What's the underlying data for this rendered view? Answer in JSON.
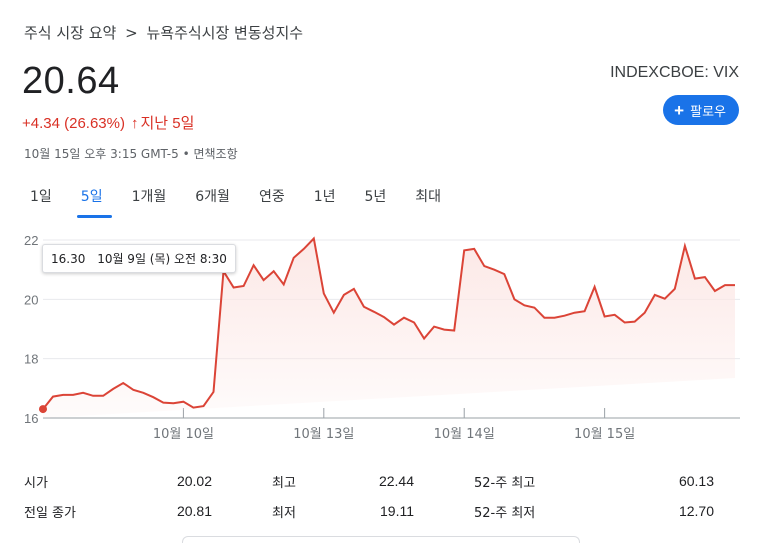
{
  "breadcrumb": {
    "parent": "주식 시장 요약",
    "separator": ">",
    "current": "뉴욕주식시장 변동성지수"
  },
  "price": "20.64",
  "ticker": "INDEXCBOE: VIX",
  "follow_label": "팔로우",
  "change": {
    "text": "+4.34 (26.63%)",
    "arrow": "↑",
    "period": "지난 5일"
  },
  "timestamp": "10월 15일 오후 3:15 GMT-5 • 면책조항",
  "tabs": [
    "1일",
    "5일",
    "1개월",
    "6개월",
    "연중",
    "1년",
    "5년",
    "최대"
  ],
  "active_tab": "5일",
  "tooltip": {
    "value": "16.30",
    "datetime": "10월 9일 (목) 오전 8:30"
  },
  "colors": {
    "line": "#db4437",
    "accent": "#1a73e8",
    "negative": "#d93025"
  },
  "stats": [
    {
      "label1": "시가",
      "value1": "20.02",
      "label2": "최고",
      "value2": "22.44",
      "label3": "52-주 최고",
      "value3": "60.13"
    },
    {
      "label1": "전일 종가",
      "value1": "20.81",
      "label2": "최저",
      "value2": "19.11",
      "label3": "52-주 최저",
      "value3": "12.70"
    }
  ],
  "chart_data": {
    "type": "area",
    "y_ticks": [
      "22",
      "20",
      "18",
      "16"
    ],
    "ylim": [
      16,
      22
    ],
    "x_ticks": [
      {
        "label": "10월 10일",
        "index": 14
      },
      {
        "label": "10월 13일",
        "index": 28
      },
      {
        "label": "10월 14일",
        "index": 42
      },
      {
        "label": "10월 15일",
        "index": 56
      }
    ],
    "values": [
      16.3,
      16.72,
      16.78,
      16.78,
      16.85,
      16.75,
      16.75,
      16.98,
      17.18,
      16.95,
      16.85,
      16.7,
      16.52,
      16.5,
      16.55,
      16.35,
      16.4,
      16.88,
      20.95,
      20.4,
      20.45,
      21.15,
      20.65,
      20.95,
      20.5,
      21.4,
      21.7,
      22.05,
      20.2,
      19.55,
      20.15,
      20.35,
      19.75,
      19.58,
      19.4,
      19.15,
      19.38,
      19.22,
      18.68,
      19.08,
      18.98,
      18.95,
      21.65,
      21.7,
      21.12,
      21.0,
      20.85,
      20.0,
      19.8,
      19.72,
      19.38,
      19.38,
      19.45,
      19.55,
      19.6,
      20.42,
      19.42,
      19.48,
      19.22,
      19.25,
      19.55,
      20.15,
      20.02,
      20.35,
      21.8,
      20.7,
      20.75,
      20.28,
      20.48,
      20.48
    ],
    "marker_index": 0,
    "grid": true
  }
}
